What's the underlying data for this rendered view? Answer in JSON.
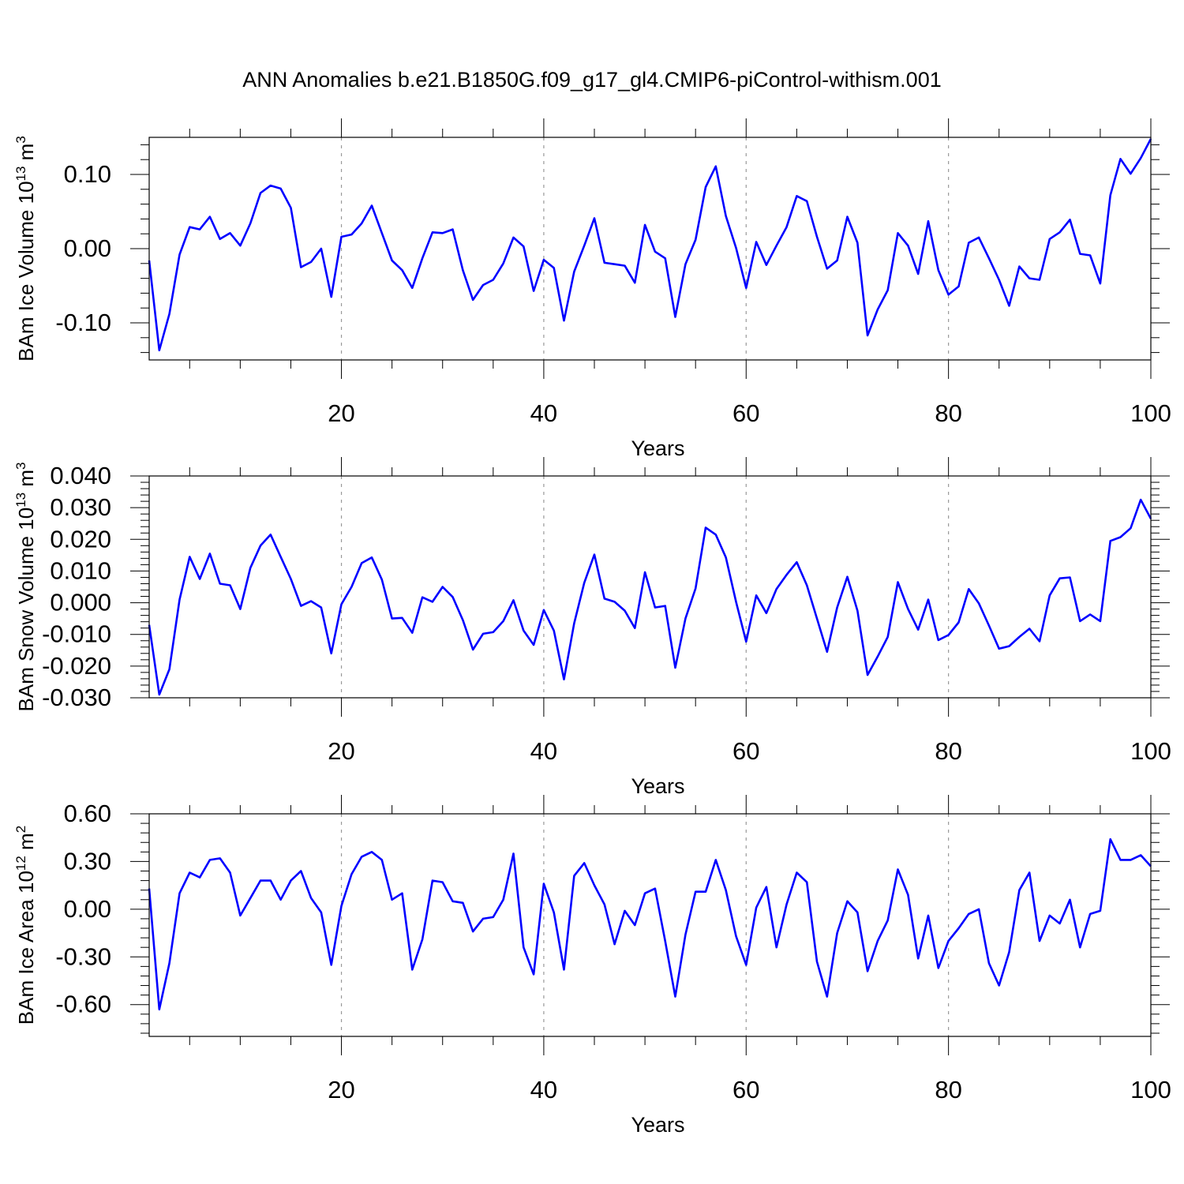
{
  "title": "ANN Anomalies b.e21.B1850G.f09_g17_gl4.CMIP6-piControl-withism.001",
  "line_color": "#0000ff",
  "grid_color": "#999999",
  "chart_data": [
    {
      "type": "line",
      "xlabel": "Years",
      "ylabel_main": "BAm Ice Volume 10",
      "ylabel_exp": "13",
      "ylabel_unit": " m",
      "ylabel_unit_exp": "3",
      "xlim": [
        1,
        100
      ],
      "ylim": [
        -0.15,
        0.15
      ],
      "xticks": [
        20,
        40,
        60,
        80,
        100
      ],
      "xtick_labels": [
        "20",
        "40",
        "60",
        "80",
        "100"
      ],
      "yticks": [
        0.1,
        0.0,
        -0.1
      ],
      "ytick_labels": [
        "0.10",
        "0.00",
        "-0.10"
      ],
      "grid": "vertical dashed at x ticks",
      "series": [
        {
          "x": [
            1,
            2,
            3,
            4,
            5,
            6,
            7,
            8,
            9,
            10,
            11,
            12,
            13,
            14,
            15,
            16,
            17,
            18,
            19,
            20,
            21,
            22,
            23,
            24,
            25,
            26,
            27,
            28,
            29,
            30,
            31,
            32,
            33,
            34,
            35,
            36,
            37,
            38,
            39,
            40,
            41,
            42,
            43,
            44,
            45,
            46,
            47,
            48,
            49,
            50,
            51,
            52,
            53,
            54,
            55,
            56,
            57,
            58,
            59,
            60,
            61,
            62,
            63,
            64,
            65,
            66,
            67,
            68,
            69,
            70,
            71,
            72,
            73,
            74,
            75,
            76,
            77,
            78,
            79,
            80,
            81,
            82,
            83,
            84,
            85,
            86,
            87,
            88,
            89,
            90,
            91,
            92,
            93,
            94,
            95,
            96,
            97,
            98,
            99,
            100
          ],
          "values": [
            -0.016,
            -0.137,
            -0.088,
            -0.008,
            0.029,
            0.026,
            0.043,
            0.013,
            0.021,
            0.004,
            0.034,
            0.075,
            0.085,
            0.081,
            0.055,
            -0.025,
            -0.018,
            0.0,
            -0.065,
            0.016,
            0.019,
            0.034,
            0.058,
            0.021,
            -0.016,
            -0.029,
            -0.053,
            -0.013,
            0.022,
            0.021,
            0.026,
            -0.029,
            -0.069,
            -0.049,
            -0.042,
            -0.02,
            0.015,
            0.003,
            -0.057,
            -0.015,
            -0.026,
            -0.097,
            -0.031,
            0.004,
            0.041,
            -0.019,
            -0.021,
            -0.023,
            -0.046,
            0.032,
            -0.004,
            -0.013,
            -0.092,
            -0.021,
            0.012,
            0.083,
            0.111,
            0.044,
            0.001,
            -0.053,
            0.009,
            -0.022,
            0.004,
            0.029,
            0.071,
            0.064,
            0.016,
            -0.027,
            -0.016,
            0.043,
            0.008,
            -0.117,
            -0.082,
            -0.056,
            0.021,
            0.004,
            -0.034,
            0.037,
            -0.029,
            -0.062,
            -0.051,
            0.008,
            0.015,
            -0.013,
            -0.042,
            -0.077,
            -0.024,
            -0.04,
            -0.042,
            0.013,
            0.022,
            0.039,
            -0.007,
            -0.009,
            -0.047,
            0.072,
            0.121,
            0.101,
            0.122,
            0.148
          ]
        }
      ]
    },
    {
      "type": "line",
      "xlabel": "Years",
      "ylabel_main": "BAm Snow Volume 10",
      "ylabel_exp": "13",
      "ylabel_unit": " m",
      "ylabel_unit_exp": "3",
      "xlim": [
        1,
        100
      ],
      "ylim": [
        -0.03,
        0.04
      ],
      "xticks": [
        20,
        40,
        60,
        80,
        100
      ],
      "xtick_labels": [
        "20",
        "40",
        "60",
        "80",
        "100"
      ],
      "yticks": [
        0.04,
        0.03,
        0.02,
        0.01,
        0.0,
        -0.01,
        -0.02,
        -0.03
      ],
      "ytick_labels": [
        "0.040",
        "0.030",
        "0.020",
        "0.010",
        "0.000",
        "-0.010",
        "-0.020",
        "-0.030"
      ],
      "grid": "vertical dashed at x ticks",
      "series": [
        {
          "x": [
            1,
            2,
            3,
            4,
            5,
            6,
            7,
            8,
            9,
            10,
            11,
            12,
            13,
            14,
            15,
            16,
            17,
            18,
            19,
            20,
            21,
            22,
            23,
            24,
            25,
            26,
            27,
            28,
            29,
            30,
            31,
            32,
            33,
            34,
            35,
            36,
            37,
            38,
            39,
            40,
            41,
            42,
            43,
            44,
            45,
            46,
            47,
            48,
            49,
            50,
            51,
            52,
            53,
            54,
            55,
            56,
            57,
            58,
            59,
            60,
            61,
            62,
            63,
            64,
            65,
            66,
            67,
            68,
            69,
            70,
            71,
            72,
            73,
            74,
            75,
            76,
            77,
            78,
            79,
            80,
            81,
            82,
            83,
            84,
            85,
            86,
            87,
            88,
            89,
            90,
            91,
            92,
            93,
            94,
            95,
            96,
            97,
            98,
            99,
            100
          ],
          "values": [
            -0.007,
            -0.029,
            -0.021,
            0.001,
            0.0145,
            0.0075,
            0.0155,
            0.006,
            0.0055,
            -0.002,
            0.011,
            0.018,
            0.0215,
            0.0145,
            0.0075,
            -0.001,
            0.0005,
            -0.0015,
            -0.016,
            -0.0005,
            0.005,
            0.0125,
            0.0143,
            0.0073,
            -0.005,
            -0.0048,
            -0.0095,
            0.0017,
            0.0003,
            0.005,
            0.0018,
            -0.0055,
            -0.0148,
            -0.0098,
            -0.0093,
            -0.0058,
            0.0008,
            -0.0088,
            -0.0133,
            -0.0023,
            -0.0088,
            -0.0242,
            -0.0065,
            0.0063,
            0.0152,
            0.0013,
            0.0003,
            -0.0025,
            -0.008,
            0.0096,
            -0.0015,
            -0.001,
            -0.0205,
            -0.005,
            0.0045,
            0.0237,
            0.0215,
            0.0143,
            0.0003,
            -0.0123,
            0.0023,
            -0.0033,
            0.0043,
            0.0088,
            0.0128,
            0.0055,
            -0.005,
            -0.0155,
            -0.0015,
            0.0082,
            -0.0025,
            -0.0228,
            -0.017,
            -0.0108,
            0.0065,
            -0.002,
            -0.0085,
            0.001,
            -0.0118,
            -0.0102,
            -0.0062,
            0.0043,
            -0.0002,
            -0.0072,
            -0.0145,
            -0.0137,
            -0.0108,
            -0.0082,
            -0.0122,
            0.0023,
            0.0077,
            0.008,
            -0.0058,
            -0.0037,
            -0.0058,
            0.0195,
            0.0207,
            0.0235,
            0.0325,
            0.0265
          ]
        }
      ]
    },
    {
      "type": "line",
      "xlabel": "Years",
      "ylabel_main": "BAm Ice Area 10",
      "ylabel_exp": "12",
      "ylabel_unit": " m",
      "ylabel_unit_exp": "2",
      "xlim": [
        1,
        100
      ],
      "ylim": [
        -0.8,
        0.6
      ],
      "xticks": [
        20,
        40,
        60,
        80,
        100
      ],
      "xtick_labels": [
        "20",
        "40",
        "60",
        "80",
        "100"
      ],
      "yticks": [
        0.6,
        0.3,
        0.0,
        -0.3,
        -0.6
      ],
      "ytick_labels": [
        "0.60",
        "0.30",
        "0.00",
        "-0.30",
        "-0.60"
      ],
      "grid": "vertical dashed at x ticks",
      "series": [
        {
          "x": [
            1,
            2,
            3,
            4,
            5,
            6,
            7,
            8,
            9,
            10,
            11,
            12,
            13,
            14,
            15,
            16,
            17,
            18,
            19,
            20,
            21,
            22,
            23,
            24,
            25,
            26,
            27,
            28,
            29,
            30,
            31,
            32,
            33,
            34,
            35,
            36,
            37,
            38,
            39,
            40,
            41,
            42,
            43,
            44,
            45,
            46,
            47,
            48,
            49,
            50,
            51,
            52,
            53,
            54,
            55,
            56,
            57,
            58,
            59,
            60,
            61,
            62,
            63,
            64,
            65,
            66,
            67,
            68,
            69,
            70,
            71,
            72,
            73,
            74,
            75,
            76,
            77,
            78,
            79,
            80,
            81,
            82,
            83,
            84,
            85,
            86,
            87,
            88,
            89,
            90,
            91,
            92,
            93,
            94,
            95,
            96,
            97,
            98,
            99,
            100
          ],
          "values": [
            0.13,
            -0.63,
            -0.34,
            0.1,
            0.23,
            0.2,
            0.31,
            0.32,
            0.23,
            -0.04,
            0.07,
            0.18,
            0.18,
            0.06,
            0.18,
            0.24,
            0.07,
            -0.02,
            -0.35,
            0.02,
            0.22,
            0.33,
            0.36,
            0.31,
            0.06,
            0.1,
            -0.38,
            -0.19,
            0.18,
            0.17,
            0.05,
            0.04,
            -0.14,
            -0.06,
            -0.05,
            0.06,
            0.35,
            -0.24,
            -0.41,
            0.16,
            -0.02,
            -0.38,
            0.21,
            0.29,
            0.15,
            0.03,
            -0.22,
            -0.01,
            -0.1,
            0.1,
            0.13,
            -0.2,
            -0.55,
            -0.16,
            0.11,
            0.11,
            0.31,
            0.12,
            -0.17,
            -0.35,
            0.01,
            0.14,
            -0.24,
            0.03,
            0.23,
            0.17,
            -0.33,
            -0.55,
            -0.15,
            0.05,
            -0.02,
            -0.39,
            -0.2,
            -0.07,
            0.25,
            0.09,
            -0.31,
            -0.04,
            -0.37,
            -0.2,
            -0.12,
            -0.03,
            0.0,
            -0.34,
            -0.48,
            -0.27,
            0.12,
            0.23,
            -0.2,
            -0.04,
            -0.09,
            0.06,
            -0.24,
            -0.03,
            -0.01,
            0.44,
            0.31,
            0.31,
            0.34,
            0.27
          ]
        }
      ]
    }
  ]
}
